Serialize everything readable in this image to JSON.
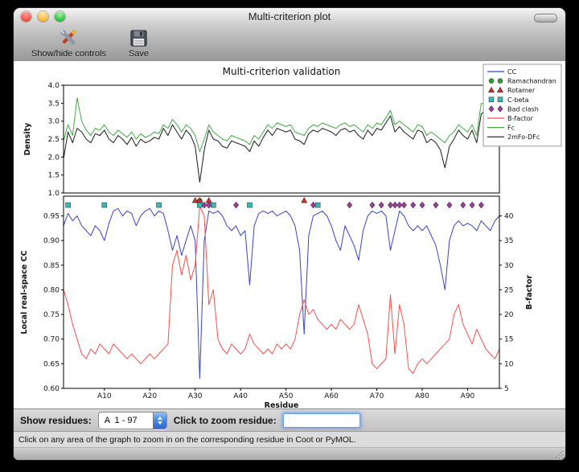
{
  "titlebar": {
    "title": "Multi-criterion plot"
  },
  "toolbar": {
    "items": [
      {
        "label": "Show/hide controls"
      },
      {
        "label": "Save"
      }
    ]
  },
  "controls": {
    "show_residues_label": "Show residues:",
    "residue_range_value": "A  1 - 97",
    "zoom_residue_label": "Click to zoom residue:",
    "zoom_residue_value": ""
  },
  "statusbar": {
    "text": "Click on any area of the graph to zoom in on the corresponding residue in Coot or PyMOL."
  },
  "chart_data": [
    {
      "type": "line",
      "title": "Multi-criterion validation",
      "ylabel": "Density",
      "ylim": [
        1.0,
        4.0
      ],
      "yticks": [
        1.0,
        1.5,
        2.0,
        2.5,
        3.0,
        3.5,
        4.0
      ],
      "x_range": [
        1,
        97
      ],
      "series": [
        {
          "name": "Fc",
          "color": "#3faa3f",
          "values": [
            2.45,
            2.9,
            2.6,
            3.65,
            3.0,
            2.75,
            2.6,
            2.8,
            2.75,
            2.9,
            2.7,
            2.6,
            2.75,
            2.65,
            2.55,
            2.7,
            2.5,
            2.65,
            2.55,
            2.6,
            2.7,
            2.65,
            2.9,
            2.8,
            3.05,
            2.9,
            2.7,
            2.9,
            2.8,
            2.6,
            2.15,
            2.5,
            2.9,
            2.7,
            2.6,
            2.5,
            2.45,
            2.6,
            2.55,
            2.5,
            2.45,
            2.35,
            2.6,
            2.5,
            2.7,
            2.9,
            2.8,
            2.95,
            2.9,
            2.85,
            2.9,
            2.7,
            2.65,
            2.6,
            2.8,
            2.9,
            2.85,
            2.95,
            2.9,
            2.85,
            2.8,
            2.9,
            2.95,
            2.85,
            2.9,
            2.8,
            2.7,
            2.9,
            2.8,
            2.95,
            2.9,
            3.1,
            3.3,
            2.9,
            3.0,
            2.9,
            2.8,
            2.7,
            2.9,
            2.85,
            2.6,
            2.7,
            2.6,
            2.5,
            2.4,
            2.6,
            2.7,
            2.9,
            2.8,
            2.7,
            2.9,
            2.6,
            3.5,
            3.45,
            2.8,
            2.9,
            3.0
          ]
        },
        {
          "name": "2mFo-DFc",
          "color": "#1a1a1a",
          "values": [
            1.95,
            2.7,
            2.4,
            2.8,
            2.7,
            2.5,
            2.4,
            2.65,
            2.6,
            2.75,
            2.5,
            2.4,
            2.6,
            2.5,
            2.35,
            2.55,
            2.3,
            2.5,
            2.4,
            2.45,
            2.55,
            2.5,
            2.8,
            2.6,
            2.9,
            2.7,
            2.5,
            2.75,
            2.6,
            2.3,
            1.3,
            2.2,
            2.75,
            2.5,
            2.45,
            2.3,
            2.25,
            2.45,
            2.4,
            2.35,
            2.3,
            2.15,
            2.45,
            2.3,
            2.55,
            2.75,
            2.6,
            2.8,
            2.75,
            2.7,
            2.75,
            2.5,
            2.45,
            2.35,
            2.65,
            2.75,
            2.7,
            2.8,
            2.75,
            2.7,
            2.6,
            2.75,
            2.8,
            2.7,
            2.75,
            2.6,
            2.5,
            2.75,
            2.6,
            2.8,
            2.75,
            2.95,
            3.15,
            2.7,
            2.85,
            2.7,
            2.6,
            2.5,
            2.75,
            2.7,
            2.4,
            2.5,
            2.4,
            2.2,
            1.7,
            2.3,
            2.5,
            2.75,
            2.6,
            2.5,
            2.75,
            2.4,
            3.2,
            3.3,
            2.6,
            2.75,
            2.85
          ]
        }
      ],
      "legend": {
        "position": "upper right",
        "entries": [
          {
            "label": "CC",
            "glyph": "line",
            "color": "#3a45c4"
          },
          {
            "label": "Ramachandran",
            "glyph": "circle",
            "color": "#2e9e2e"
          },
          {
            "label": "Rotamer",
            "glyph": "triangle",
            "color": "#c83232"
          },
          {
            "label": "C-beta",
            "glyph": "square",
            "color": "#38b8b8"
          },
          {
            "label": "Bad clash",
            "glyph": "diamond",
            "color": "#993d99"
          },
          {
            "label": "B-factor",
            "glyph": "line",
            "color": "#f4524d"
          },
          {
            "label": "Fc",
            "glyph": "line",
            "color": "#3faa3f"
          },
          {
            "label": "2mFo-DFc",
            "glyph": "line",
            "color": "#1a1a1a"
          }
        ]
      }
    },
    {
      "type": "line",
      "xlabel": "Residue",
      "x_range": [
        1,
        97
      ],
      "xticks": [
        10,
        20,
        30,
        40,
        50,
        60,
        70,
        80,
        90
      ],
      "xtick_labels": [
        "A10",
        "A20",
        "A30",
        "A40",
        "A50",
        "A60",
        "A70",
        "A80",
        "A90"
      ],
      "ylabel_left": "Local real-space CC",
      "ylim_left": [
        0.6,
        0.99
      ],
      "yticks_left": [
        0.6,
        0.65,
        0.7,
        0.75,
        0.8,
        0.85,
        0.9,
        0.95
      ],
      "ylabel_right": "B-factor",
      "ylim_right": [
        5,
        44
      ],
      "yticks_right": [
        5,
        10,
        15,
        20,
        25,
        30,
        35,
        40
      ],
      "series": [
        {
          "name": "CC",
          "axis": "left",
          "color": "#3a45c4",
          "values": [
            0.93,
            0.955,
            0.94,
            0.95,
            0.93,
            0.92,
            0.91,
            0.93,
            0.92,
            0.9,
            0.935,
            0.96,
            0.965,
            0.95,
            0.96,
            0.955,
            0.93,
            0.95,
            0.96,
            0.965,
            0.95,
            0.96,
            0.955,
            0.92,
            0.88,
            0.91,
            0.87,
            0.9,
            0.93,
            0.9,
            0.62,
            0.9,
            0.96,
            0.955,
            0.96,
            0.95,
            0.93,
            0.92,
            0.93,
            0.91,
            0.92,
            0.81,
            0.93,
            0.955,
            0.96,
            0.955,
            0.96,
            0.95,
            0.955,
            0.96,
            0.95,
            0.93,
            0.88,
            0.71,
            0.91,
            0.95,
            0.955,
            0.96,
            0.95,
            0.93,
            0.9,
            0.88,
            0.93,
            0.91,
            0.89,
            0.86,
            0.92,
            0.95,
            0.96,
            0.955,
            0.96,
            0.95,
            0.88,
            0.92,
            0.96,
            0.95,
            0.93,
            0.92,
            0.93,
            0.92,
            0.93,
            0.91,
            0.89,
            0.85,
            0.8,
            0.9,
            0.93,
            0.94,
            0.93,
            0.935,
            0.93,
            0.92,
            0.94,
            0.93,
            0.92,
            0.94,
            0.95
          ]
        },
        {
          "name": "B-factor",
          "axis": "right",
          "color": "#f4524d",
          "values": [
            25,
            22,
            18,
            15,
            12,
            11,
            13,
            12,
            14,
            13,
            12,
            14,
            13,
            12,
            11,
            12,
            11,
            10,
            11,
            12,
            11,
            12,
            13,
            14,
            30,
            33,
            28,
            32,
            27,
            30,
            42,
            40,
            22,
            25,
            15,
            13,
            12,
            14,
            13,
            12,
            13,
            16,
            14,
            13,
            12,
            13,
            12,
            14,
            13,
            14,
            13,
            15,
            20,
            23,
            20,
            21,
            19,
            18,
            17,
            18,
            17,
            19,
            18,
            17,
            18,
            22,
            19,
            16,
            10,
            9,
            10,
            11,
            24,
            12,
            22,
            18,
            9,
            8,
            10,
            11,
            10,
            11,
            12,
            13,
            14,
            15,
            20,
            22,
            18,
            16,
            14,
            17,
            15,
            13,
            12,
            11,
            13
          ]
        }
      ],
      "markers": [
        {
          "name": "Ramachandran",
          "shape": "circle",
          "color": "#2e9e2e",
          "y": 0.981,
          "residues": [
            31
          ]
        },
        {
          "name": "Rotamer",
          "shape": "triangle",
          "color": "#c83232",
          "y": 0.981,
          "residues": [
            30,
            31,
            33,
            54
          ]
        },
        {
          "name": "C-beta",
          "shape": "square",
          "color": "#38b8b8",
          "y": 0.972,
          "residues": [
            2,
            10,
            22,
            31,
            34,
            42,
            57
          ]
        },
        {
          "name": "Bad clash",
          "shape": "diamond",
          "color": "#993d99",
          "y": 0.972,
          "residues": [
            32,
            33,
            39,
            56,
            64,
            69,
            71,
            73,
            74,
            75,
            76,
            78,
            80,
            83,
            86,
            89,
            91,
            93
          ]
        }
      ]
    }
  ]
}
